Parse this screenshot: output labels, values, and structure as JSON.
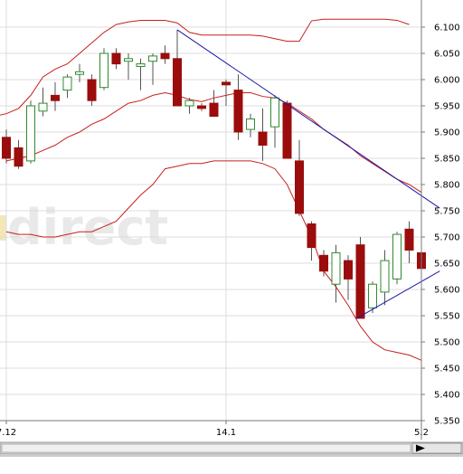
{
  "watermark_text": "direct",
  "chart_data": {
    "type": "candlestick",
    "y_axis": {
      "side": "right",
      "min": 5.35,
      "max": 6.1,
      "step": 0.05,
      "ticks": [
        "6.100",
        "6.050",
        "6.000",
        "5.950",
        "5.900",
        "5.850",
        "5.800",
        "5.750",
        "5.700",
        "5.650",
        "5.600",
        "5.550",
        "5.500",
        "5.450",
        "5.400",
        "5.350"
      ]
    },
    "x_axis": {
      "labels": [
        {
          "label": "7.12",
          "index": 0
        },
        {
          "label": "14.1",
          "index": 18
        },
        {
          "label": "5.2",
          "index": 34
        }
      ]
    },
    "grid": true,
    "colors": {
      "up": "#2e8b2e",
      "down": "#9b0c0c",
      "bands": "#c81e1e",
      "trend": "#1a1aa8"
    },
    "candles": [
      {
        "o": 5.89,
        "h": 5.905,
        "l": 5.84,
        "c": 5.85
      },
      {
        "o": 5.87,
        "h": 5.885,
        "l": 5.83,
        "c": 5.835
      },
      {
        "o": 5.845,
        "h": 5.96,
        "l": 5.84,
        "c": 5.95
      },
      {
        "o": 5.94,
        "h": 5.985,
        "l": 5.93,
        "c": 5.955
      },
      {
        "o": 5.97,
        "h": 5.995,
        "l": 5.94,
        "c": 5.96
      },
      {
        "o": 5.98,
        "h": 6.01,
        "l": 5.965,
        "c": 6.005
      },
      {
        "o": 6.01,
        "h": 6.03,
        "l": 5.995,
        "c": 6.015
      },
      {
        "o": 6.0,
        "h": 6.01,
        "l": 5.95,
        "c": 5.96
      },
      {
        "o": 5.985,
        "h": 6.06,
        "l": 5.98,
        "c": 6.05
      },
      {
        "o": 6.05,
        "h": 6.06,
        "l": 6.02,
        "c": 6.03
      },
      {
        "o": 6.035,
        "h": 6.05,
        "l": 6.0,
        "c": 6.04
      },
      {
        "o": 6.025,
        "h": 6.04,
        "l": 5.98,
        "c": 6.03
      },
      {
        "o": 6.035,
        "h": 6.05,
        "l": 5.99,
        "c": 6.045
      },
      {
        "o": 6.05,
        "h": 6.065,
        "l": 6.03,
        "c": 6.04
      },
      {
        "o": 6.04,
        "h": 6.095,
        "l": 5.95,
        "c": 5.95
      },
      {
        "o": 5.95,
        "h": 5.965,
        "l": 5.935,
        "c": 5.96
      },
      {
        "o": 5.95,
        "h": 5.955,
        "l": 5.94,
        "c": 5.945
      },
      {
        "o": 5.955,
        "h": 5.98,
        "l": 5.93,
        "c": 5.93
      },
      {
        "o": 5.995,
        "h": 6.0,
        "l": 5.95,
        "c": 5.99
      },
      {
        "o": 5.98,
        "h": 6.01,
        "l": 5.885,
        "c": 5.9
      },
      {
        "o": 5.905,
        "h": 5.935,
        "l": 5.89,
        "c": 5.925
      },
      {
        "o": 5.9,
        "h": 5.945,
        "l": 5.845,
        "c": 5.875
      },
      {
        "o": 5.91,
        "h": 5.97,
        "l": 5.87,
        "c": 5.965
      },
      {
        "o": 5.955,
        "h": 5.96,
        "l": 5.85,
        "c": 5.85
      },
      {
        "o": 5.845,
        "h": 5.885,
        "l": 5.74,
        "c": 5.745
      },
      {
        "o": 5.725,
        "h": 5.73,
        "l": 5.655,
        "c": 5.68
      },
      {
        "o": 5.665,
        "h": 5.675,
        "l": 5.625,
        "c": 5.635
      },
      {
        "o": 5.61,
        "h": 5.685,
        "l": 5.575,
        "c": 5.67
      },
      {
        "o": 5.655,
        "h": 5.665,
        "l": 5.58,
        "c": 5.62
      },
      {
        "o": 5.685,
        "h": 5.7,
        "l": 5.545,
        "c": 5.545
      },
      {
        "o": 5.565,
        "h": 5.615,
        "l": 5.555,
        "c": 5.61
      },
      {
        "o": 5.595,
        "h": 5.675,
        "l": 5.57,
        "c": 5.655
      },
      {
        "o": 5.62,
        "h": 5.71,
        "l": 5.61,
        "c": 5.705
      },
      {
        "o": 5.715,
        "h": 5.73,
        "l": 5.65,
        "c": 5.675
      },
      {
        "o": 5.67,
        "h": 5.685,
        "l": 5.615,
        "c": 5.64
      }
    ],
    "bollinger_upper": [
      5.93,
      5.935,
      5.945,
      5.97,
      6.005,
      6.02,
      6.03,
      6.05,
      6.07,
      6.09,
      6.105,
      6.11,
      6.113,
      6.113,
      6.113,
      6.108,
      6.09,
      6.085,
      6.085,
      6.085,
      6.085,
      6.085,
      6.083,
      6.078,
      6.073,
      6.073,
      6.112,
      6.115,
      6.115,
      6.115,
      6.115,
      6.115,
      6.115,
      6.113,
      6.105
    ],
    "bollinger_middle": [
      5.845,
      5.85,
      5.855,
      5.865,
      5.875,
      5.89,
      5.9,
      5.915,
      5.925,
      5.94,
      5.955,
      5.96,
      5.97,
      5.975,
      5.97,
      5.962,
      5.958,
      5.965,
      5.97,
      5.975,
      5.975,
      5.968,
      5.965,
      5.955,
      5.94,
      5.925,
      5.905,
      5.89,
      5.875,
      5.855,
      5.84,
      5.825,
      5.81,
      5.8,
      5.785
    ],
    "bollinger_lower": [
      5.71,
      5.705,
      5.705,
      5.7,
      5.7,
      5.705,
      5.71,
      5.71,
      5.72,
      5.73,
      5.755,
      5.78,
      5.8,
      5.83,
      5.835,
      5.84,
      5.84,
      5.845,
      5.845,
      5.845,
      5.845,
      5.84,
      5.83,
      5.8,
      5.75,
      5.7,
      5.635,
      5.605,
      5.57,
      5.53,
      5.5,
      5.485,
      5.48,
      5.475,
      5.465
    ],
    "bollinger_upper_x": [
      -1,
      0,
      1,
      2,
      3,
      4,
      5,
      6,
      7,
      8,
      9,
      10,
      11,
      12,
      13,
      14,
      15,
      16,
      17,
      18,
      19,
      20,
      21,
      22,
      23,
      24,
      25,
      26,
      27,
      28,
      29,
      30,
      31,
      32,
      33
    ],
    "trendlines": [
      {
        "x1": 14,
        "y1": 6.095,
        "x2": 35.5,
        "y2": 5.755
      },
      {
        "x1": 28.7,
        "y1": 5.545,
        "x2": 35.5,
        "y2": 5.635
      }
    ]
  }
}
